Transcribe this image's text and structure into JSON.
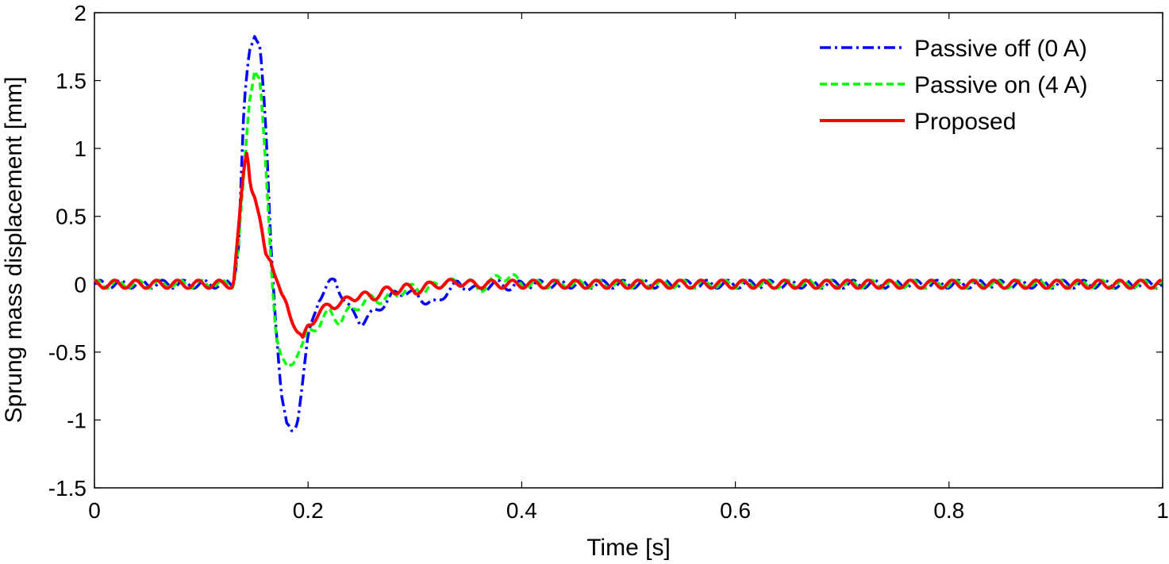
{
  "chart_data": {
    "type": "line",
    "title": "",
    "xlabel": "Time [s]",
    "ylabel": "Sprung mass displacement [mm]",
    "xlim": [
      0,
      1
    ],
    "ylim": [
      -1.5,
      2
    ],
    "xticks": [
      0,
      0.2,
      0.4,
      0.6,
      0.8,
      1
    ],
    "xtick_labels": [
      "0",
      "0.2",
      "0.4",
      "0.6",
      "0.8",
      "1"
    ],
    "yticks": [
      -1.5,
      -1,
      -0.5,
      0,
      0.5,
      1,
      1.5,
      2
    ],
    "ytick_labels": [
      "-1.5",
      "-1",
      "-0.5",
      "0",
      "0.5",
      "1",
      "1.5",
      "2"
    ],
    "grid": false,
    "legend_position": "top-right",
    "series": [
      {
        "name": "Passive off (0 A)",
        "color": "#0000ff",
        "style": "dashdot",
        "x": [
          0,
          0.13,
          0.135,
          0.14,
          0.145,
          0.15,
          0.155,
          0.16,
          0.165,
          0.17,
          0.175,
          0.18,
          0.185,
          0.19,
          0.195,
          0.2,
          0.21,
          0.22,
          0.225,
          0.23,
          0.24,
          0.25,
          0.26,
          0.27,
          0.28,
          0.29,
          0.3,
          0.31,
          0.32,
          0.33,
          0.34,
          0.35,
          0.36,
          0.37,
          0.38,
          0.39,
          0.4,
          1.0
        ],
        "y": [
          0,
          0,
          0.3,
          1.3,
          1.7,
          1.85,
          1.78,
          1.2,
          0.3,
          -0.3,
          -0.8,
          -1.05,
          -1.1,
          -1.0,
          -0.7,
          -0.4,
          -0.1,
          0.0,
          0.03,
          -0.05,
          -0.2,
          -0.28,
          -0.22,
          -0.15,
          -0.08,
          -0.05,
          -0.08,
          -0.12,
          -0.15,
          -0.05,
          0.0,
          -0.02,
          -0.05,
          0.0,
          0.0,
          -0.02,
          0.0,
          0.0
        ]
      },
      {
        "name": "Passive on (4 A)",
        "color": "#00ff00",
        "style": "dashed",
        "x": [
          0,
          0.13,
          0.135,
          0.14,
          0.145,
          0.15,
          0.155,
          0.16,
          0.165,
          0.17,
          0.175,
          0.18,
          0.185,
          0.19,
          0.195,
          0.2,
          0.21,
          0.22,
          0.23,
          0.24,
          0.25,
          0.26,
          0.27,
          0.28,
          0.29,
          0.3,
          0.31,
          0.32,
          0.33,
          0.34,
          0.35,
          0.36,
          0.37,
          0.38,
          0.39,
          0.4,
          1.0
        ],
        "y": [
          0,
          0,
          0.3,
          0.8,
          1.35,
          1.6,
          1.5,
          0.9,
          0.2,
          -0.35,
          -0.55,
          -0.63,
          -0.58,
          -0.5,
          -0.45,
          -0.35,
          -0.3,
          -0.2,
          -0.28,
          -0.18,
          -0.15,
          -0.1,
          -0.12,
          -0.08,
          -0.05,
          -0.02,
          -0.05,
          0.0,
          0.02,
          0.0,
          0.03,
          -0.05,
          0.02,
          0.05,
          0.06,
          0.0,
          0.0
        ]
      },
      {
        "name": "Proposed",
        "color": "#ff0000",
        "style": "solid",
        "x": [
          0,
          0.13,
          0.135,
          0.14,
          0.143,
          0.146,
          0.15,
          0.155,
          0.16,
          0.165,
          0.17,
          0.175,
          0.18,
          0.185,
          0.19,
          0.195,
          0.2,
          0.21,
          0.22,
          0.23,
          0.24,
          0.25,
          0.26,
          0.27,
          0.28,
          0.29,
          0.3,
          0.31,
          0.32,
          0.33,
          0.34,
          0.35,
          1.0
        ],
        "y": [
          0,
          0,
          0.4,
          0.85,
          1.0,
          0.75,
          0.65,
          0.45,
          0.22,
          0.2,
          0.05,
          -0.1,
          -0.15,
          -0.25,
          -0.35,
          -0.42,
          -0.3,
          -0.22,
          -0.15,
          -0.15,
          -0.1,
          -0.08,
          -0.1,
          -0.05,
          -0.05,
          -0.02,
          -0.05,
          -0.02,
          0.0,
          0.0,
          0.02,
          0.0,
          0.0
        ]
      }
    ]
  }
}
